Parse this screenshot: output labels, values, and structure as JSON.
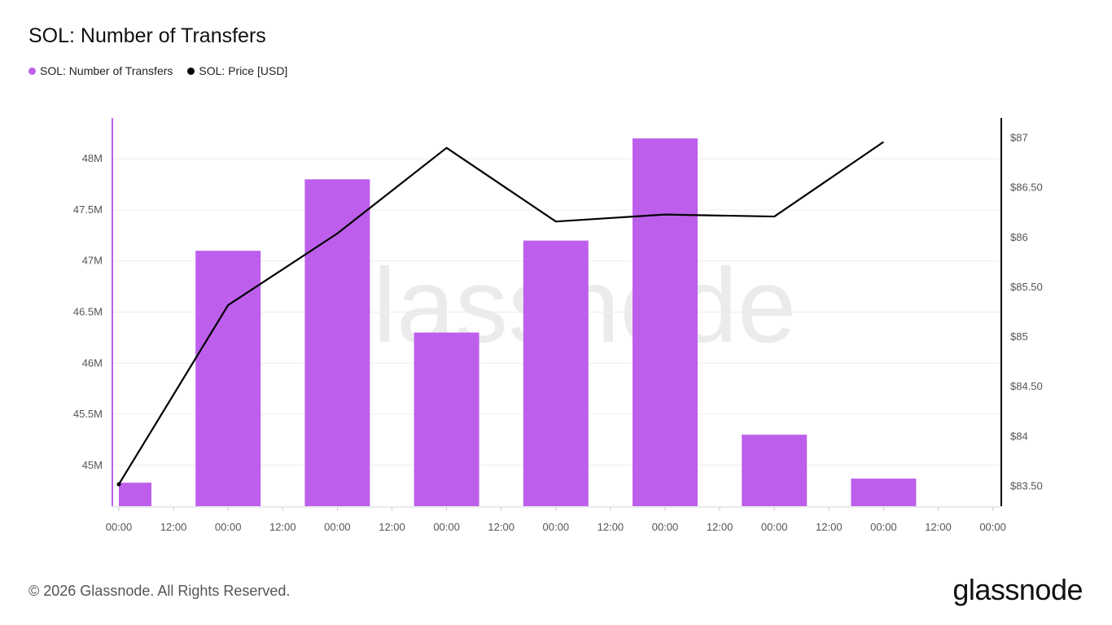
{
  "title": "SOL: Number of Transfers",
  "legend": [
    {
      "label": "SOL: Number of Transfers",
      "color": "#bd5fec"
    },
    {
      "label": "SOL: Price [USD]",
      "color": "#000000"
    }
  ],
  "footer": "© 2026 Glassnode. All Rights Reserved.",
  "brand": "glassnode",
  "watermark": "glassnode",
  "chart_data": {
    "type": "bar",
    "x_tick_labels": [
      "00:00",
      "12:00",
      "00:00",
      "12:00",
      "00:00",
      "12:00",
      "00:00",
      "12:00",
      "00:00",
      "12:00",
      "00:00",
      "12:00",
      "00:00",
      "12:00",
      "00:00",
      "12:00",
      "00:00"
    ],
    "bar_x_index": [
      0,
      1,
      2,
      3,
      4,
      5,
      6,
      7
    ],
    "series": [
      {
        "name": "SOL: Number of Transfers",
        "axis": "left",
        "type": "bar",
        "color": "#bd5fec",
        "values": [
          44830000,
          47100000,
          47800000,
          46300000,
          47200000,
          48200000,
          45300000,
          44870000
        ]
      },
      {
        "name": "SOL: Price [USD]",
        "axis": "right",
        "type": "line",
        "color": "#000000",
        "values": [
          83.52,
          85.32,
          86.04,
          86.9,
          86.16,
          86.23,
          86.21,
          86.96
        ]
      }
    ],
    "y_left": {
      "ticks": [
        "45M",
        "45.5M",
        "46M",
        "46.5M",
        "47M",
        "47.5M",
        "48M"
      ],
      "tick_values": [
        45000000,
        45500000,
        46000000,
        46500000,
        47000000,
        47500000,
        48000000
      ],
      "range": [
        44600000,
        48400000
      ],
      "color": "#bd5fec"
    },
    "y_right": {
      "ticks": [
        "$83.50",
        "$84",
        "$84.50",
        "$85",
        "$85.50",
        "$86",
        "$86.50",
        "$87"
      ],
      "tick_values": [
        83.5,
        84,
        84.5,
        85,
        85.5,
        86,
        86.5,
        87
      ],
      "range": [
        83.3,
        87.2
      ],
      "color": "#000000"
    },
    "grid": true
  }
}
